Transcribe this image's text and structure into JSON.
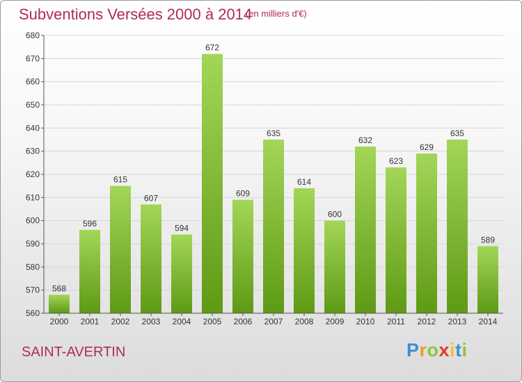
{
  "header": {
    "title": "Subventions Versées 2000 à 2014",
    "unit": "(en milliers d'€)"
  },
  "footer": {
    "city": "SAINT-AVERTIN",
    "logo_letters": [
      "P",
      "r",
      "o",
      "x",
      "i",
      "t",
      "i"
    ],
    "logo_colors": [
      "#3d8fd8",
      "#e8a020",
      "#8cc63f",
      "#e23a2c",
      "#f2c21b",
      "#3d8fd8",
      "#8cc63f"
    ]
  },
  "chart_data": {
    "type": "bar",
    "categories": [
      "2000",
      "2001",
      "2002",
      "2003",
      "2004",
      "2005",
      "2006",
      "2007",
      "2008",
      "2009",
      "2010",
      "2011",
      "2012",
      "2013",
      "2014"
    ],
    "values": [
      568,
      596,
      615,
      607,
      594,
      672,
      609,
      635,
      614,
      600,
      632,
      623,
      629,
      635,
      589
    ],
    "ylim": [
      560,
      680
    ],
    "yticks": [
      560,
      570,
      580,
      590,
      600,
      610,
      620,
      630,
      640,
      650,
      660,
      670,
      680
    ],
    "grid": true,
    "bar_color_top": "#a3d658",
    "bar_color_bottom": "#5e9a14"
  }
}
